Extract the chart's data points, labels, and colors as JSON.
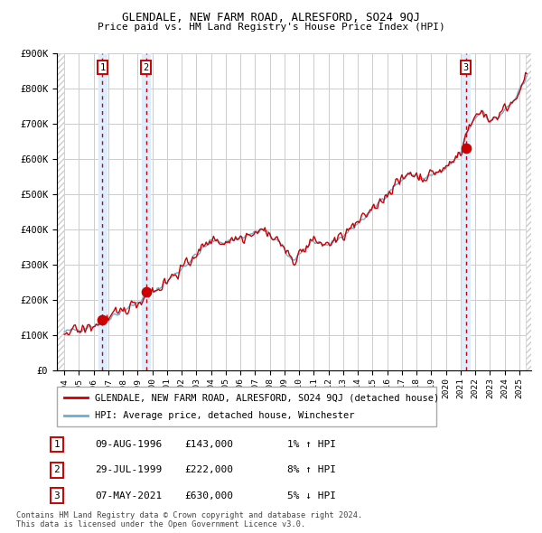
{
  "title": "GLENDALE, NEW FARM ROAD, ALRESFORD, SO24 9QJ",
  "subtitle": "Price paid vs. HM Land Registry's House Price Index (HPI)",
  "hpi_label": "HPI: Average price, detached house, Winchester",
  "property_label": "GLENDALE, NEW FARM ROAD, ALRESFORD, SO24 9QJ (detached house)",
  "sale_dates_decimal": [
    1996.604,
    1999.572,
    2021.352
  ],
  "sale_prices": [
    143000,
    222000,
    630000
  ],
  "sale_labels": [
    "1",
    "2",
    "3"
  ],
  "sale_date_strs": [
    "09-AUG-1996",
    "29-JUL-1999",
    "07-MAY-2021"
  ],
  "sale_price_strs": [
    "£143,000",
    "£222,000",
    "£630,000"
  ],
  "sale_hpi_strs": [
    "1% ↑ HPI",
    "8% ↑ HPI",
    "5% ↓ HPI"
  ],
  "hpi_color": "#6aaed6",
  "property_color": "#cc0000",
  "vline_color": "#cc0000",
  "shade_color": "#ddeeff",
  "grid_color": "#cccccc",
  "ylim": [
    0,
    900000
  ],
  "yticks": [
    0,
    100000,
    200000,
    300000,
    400000,
    500000,
    600000,
    700000,
    800000,
    900000
  ],
  "ytick_labels": [
    "£0",
    "£100K",
    "£200K",
    "£300K",
    "£400K",
    "£500K",
    "£600K",
    "£700K",
    "£800K",
    "£900K"
  ],
  "xlim_start": 1993.5,
  "xlim_end": 2025.8,
  "xticks": [
    1994,
    1995,
    1996,
    1997,
    1998,
    1999,
    2000,
    2001,
    2002,
    2003,
    2004,
    2005,
    2006,
    2007,
    2008,
    2009,
    2010,
    2011,
    2012,
    2013,
    2014,
    2015,
    2016,
    2017,
    2018,
    2019,
    2020,
    2021,
    2022,
    2023,
    2024,
    2025
  ],
  "footer_line1": "Contains HM Land Registry data © Crown copyright and database right 2024.",
  "footer_line2": "This data is licensed under the Open Government Licence v3.0.",
  "bg_color": "#ffffff"
}
